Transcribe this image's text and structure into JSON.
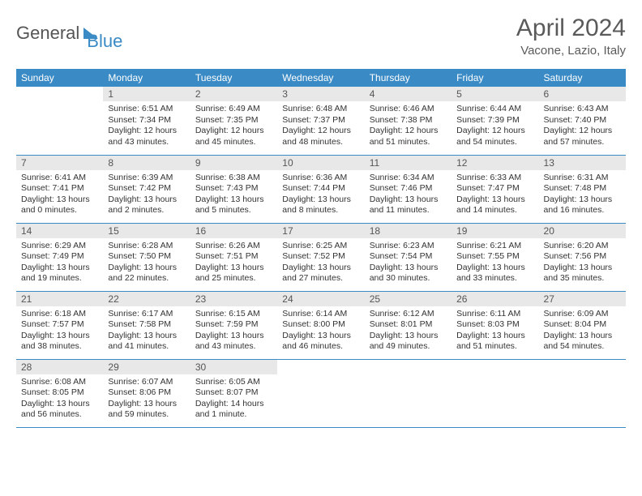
{
  "logo": {
    "part1": "General",
    "part2": "Blue"
  },
  "title": "April 2024",
  "subtitle": "Vacone, Lazio, Italy",
  "colors": {
    "header_bg": "#3a8ac5",
    "header_text": "#ffffff",
    "daynum_bg": "#e8e8e8",
    "daynum_text": "#555555",
    "body_text": "#333333",
    "row_border": "#3a8ac5",
    "page_bg": "#ffffff"
  },
  "fontsize": {
    "title": 30,
    "subtitle": 15,
    "header": 12,
    "daynum": 12,
    "cell": 10.5
  },
  "weekdays": [
    "Sunday",
    "Monday",
    "Tuesday",
    "Wednesday",
    "Thursday",
    "Friday",
    "Saturday"
  ],
  "first_weekday_index": 1,
  "days": [
    {
      "n": 1,
      "sunrise": "6:51 AM",
      "sunset": "7:34 PM",
      "daylight": "12 hours and 43 minutes."
    },
    {
      "n": 2,
      "sunrise": "6:49 AM",
      "sunset": "7:35 PM",
      "daylight": "12 hours and 45 minutes."
    },
    {
      "n": 3,
      "sunrise": "6:48 AM",
      "sunset": "7:37 PM",
      "daylight": "12 hours and 48 minutes."
    },
    {
      "n": 4,
      "sunrise": "6:46 AM",
      "sunset": "7:38 PM",
      "daylight": "12 hours and 51 minutes."
    },
    {
      "n": 5,
      "sunrise": "6:44 AM",
      "sunset": "7:39 PM",
      "daylight": "12 hours and 54 minutes."
    },
    {
      "n": 6,
      "sunrise": "6:43 AM",
      "sunset": "7:40 PM",
      "daylight": "12 hours and 57 minutes."
    },
    {
      "n": 7,
      "sunrise": "6:41 AM",
      "sunset": "7:41 PM",
      "daylight": "13 hours and 0 minutes."
    },
    {
      "n": 8,
      "sunrise": "6:39 AM",
      "sunset": "7:42 PM",
      "daylight": "13 hours and 2 minutes."
    },
    {
      "n": 9,
      "sunrise": "6:38 AM",
      "sunset": "7:43 PM",
      "daylight": "13 hours and 5 minutes."
    },
    {
      "n": 10,
      "sunrise": "6:36 AM",
      "sunset": "7:44 PM",
      "daylight": "13 hours and 8 minutes."
    },
    {
      "n": 11,
      "sunrise": "6:34 AM",
      "sunset": "7:46 PM",
      "daylight": "13 hours and 11 minutes."
    },
    {
      "n": 12,
      "sunrise": "6:33 AM",
      "sunset": "7:47 PM",
      "daylight": "13 hours and 14 minutes."
    },
    {
      "n": 13,
      "sunrise": "6:31 AM",
      "sunset": "7:48 PM",
      "daylight": "13 hours and 16 minutes."
    },
    {
      "n": 14,
      "sunrise": "6:29 AM",
      "sunset": "7:49 PM",
      "daylight": "13 hours and 19 minutes."
    },
    {
      "n": 15,
      "sunrise": "6:28 AM",
      "sunset": "7:50 PM",
      "daylight": "13 hours and 22 minutes."
    },
    {
      "n": 16,
      "sunrise": "6:26 AM",
      "sunset": "7:51 PM",
      "daylight": "13 hours and 25 minutes."
    },
    {
      "n": 17,
      "sunrise": "6:25 AM",
      "sunset": "7:52 PM",
      "daylight": "13 hours and 27 minutes."
    },
    {
      "n": 18,
      "sunrise": "6:23 AM",
      "sunset": "7:54 PM",
      "daylight": "13 hours and 30 minutes."
    },
    {
      "n": 19,
      "sunrise": "6:21 AM",
      "sunset": "7:55 PM",
      "daylight": "13 hours and 33 minutes."
    },
    {
      "n": 20,
      "sunrise": "6:20 AM",
      "sunset": "7:56 PM",
      "daylight": "13 hours and 35 minutes."
    },
    {
      "n": 21,
      "sunrise": "6:18 AM",
      "sunset": "7:57 PM",
      "daylight": "13 hours and 38 minutes."
    },
    {
      "n": 22,
      "sunrise": "6:17 AM",
      "sunset": "7:58 PM",
      "daylight": "13 hours and 41 minutes."
    },
    {
      "n": 23,
      "sunrise": "6:15 AM",
      "sunset": "7:59 PM",
      "daylight": "13 hours and 43 minutes."
    },
    {
      "n": 24,
      "sunrise": "6:14 AM",
      "sunset": "8:00 PM",
      "daylight": "13 hours and 46 minutes."
    },
    {
      "n": 25,
      "sunrise": "6:12 AM",
      "sunset": "8:01 PM",
      "daylight": "13 hours and 49 minutes."
    },
    {
      "n": 26,
      "sunrise": "6:11 AM",
      "sunset": "8:03 PM",
      "daylight": "13 hours and 51 minutes."
    },
    {
      "n": 27,
      "sunrise": "6:09 AM",
      "sunset": "8:04 PM",
      "daylight": "13 hours and 54 minutes."
    },
    {
      "n": 28,
      "sunrise": "6:08 AM",
      "sunset": "8:05 PM",
      "daylight": "13 hours and 56 minutes."
    },
    {
      "n": 29,
      "sunrise": "6:07 AM",
      "sunset": "8:06 PM",
      "daylight": "13 hours and 59 minutes."
    },
    {
      "n": 30,
      "sunrise": "6:05 AM",
      "sunset": "8:07 PM",
      "daylight": "14 hours and 1 minute."
    }
  ],
  "labels": {
    "sunrise": "Sunrise:",
    "sunset": "Sunset:",
    "daylight": "Daylight:"
  }
}
